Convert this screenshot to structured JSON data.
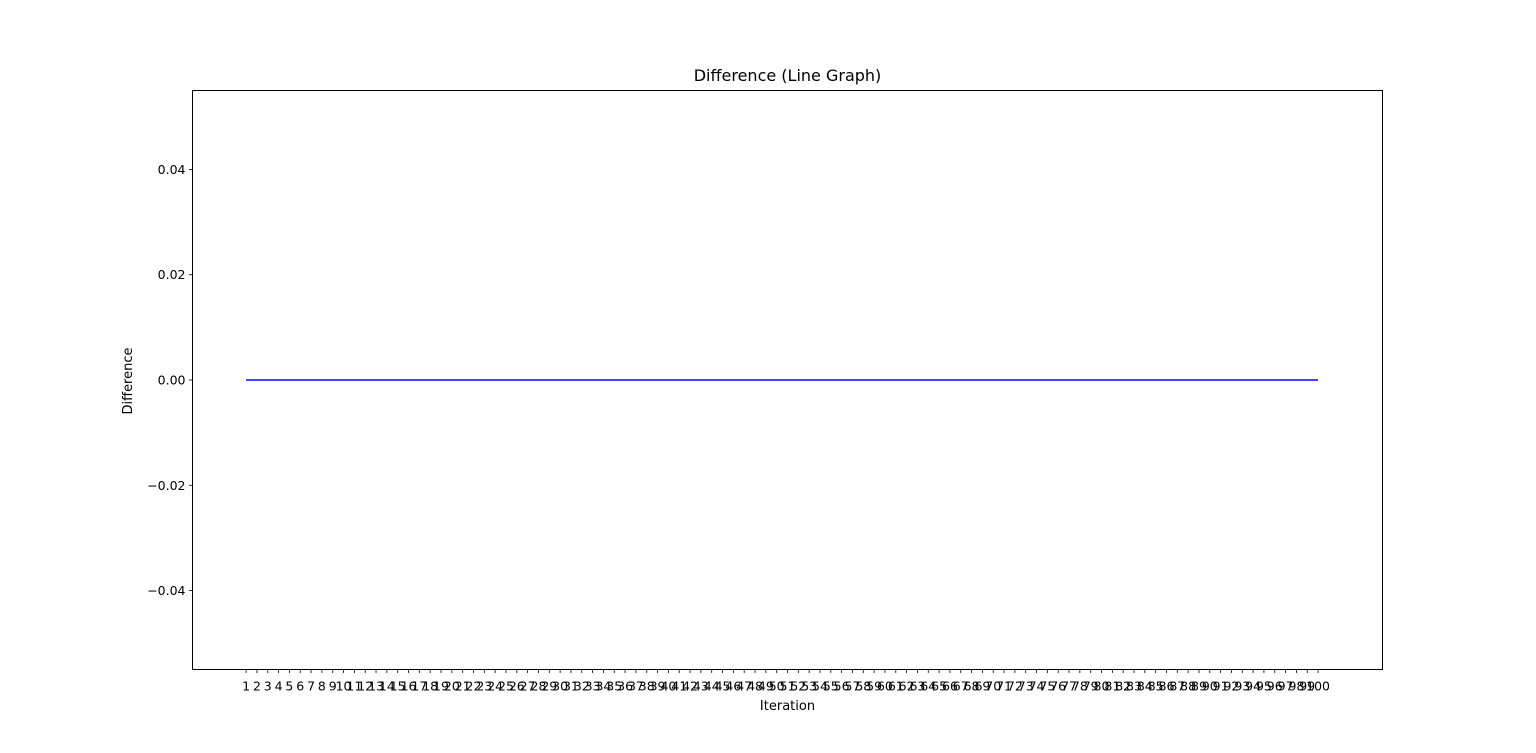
{
  "chart_data": {
    "type": "line",
    "title": "Difference (Line Graph)",
    "xlabel": "Iteration",
    "ylabel": "Difference",
    "x": [
      1,
      2,
      3,
      4,
      5,
      6,
      7,
      8,
      9,
      10,
      11,
      12,
      13,
      14,
      15,
      16,
      17,
      18,
      19,
      20,
      21,
      22,
      23,
      24,
      25,
      26,
      27,
      28,
      29,
      30,
      31,
      32,
      33,
      34,
      35,
      36,
      37,
      38,
      39,
      40,
      41,
      42,
      43,
      44,
      45,
      46,
      47,
      48,
      49,
      50,
      51,
      52,
      53,
      54,
      55,
      56,
      57,
      58,
      59,
      60,
      61,
      62,
      63,
      64,
      65,
      66,
      67,
      68,
      69,
      70,
      71,
      72,
      73,
      74,
      75,
      76,
      77,
      78,
      79,
      80,
      81,
      82,
      83,
      84,
      85,
      86,
      87,
      88,
      89,
      90,
      91,
      92,
      93,
      94,
      95,
      96,
      97,
      98,
      99,
      100
    ],
    "x_tick_labels": [
      "1",
      "2",
      "3",
      "4",
      "5",
      "6",
      "7",
      "8",
      "9",
      "10",
      "11",
      "12",
      "13",
      "14",
      "15",
      "16",
      "17",
      "18",
      "19",
      "20",
      "21",
      "22",
      "23",
      "24",
      "25",
      "26",
      "27",
      "28",
      "29",
      "30",
      "31",
      "32",
      "33",
      "34",
      "35",
      "36",
      "37",
      "38",
      "39",
      "40",
      "41",
      "42",
      "43",
      "44",
      "45",
      "46",
      "47",
      "48",
      "49",
      "50",
      "51",
      "52",
      "53",
      "54",
      "55",
      "56",
      "57",
      "58",
      "59",
      "60",
      "61",
      "62",
      "63",
      "64",
      "65",
      "66",
      "67",
      "68",
      "69",
      "70",
      "71",
      "72",
      "73",
      "74",
      "75",
      "76",
      "77",
      "78",
      "79",
      "80",
      "81",
      "82",
      "83",
      "84",
      "85",
      "86",
      "87",
      "88",
      "89",
      "90",
      "91",
      "92",
      "93",
      "94",
      "95",
      "96",
      "97",
      "98",
      "99",
      "100"
    ],
    "series": [
      {
        "values": [
          0,
          0,
          0,
          0,
          0,
          0,
          0,
          0,
          0,
          0,
          0,
          0,
          0,
          0,
          0,
          0,
          0,
          0,
          0,
          0,
          0,
          0,
          0,
          0,
          0,
          0,
          0,
          0,
          0,
          0,
          0,
          0,
          0,
          0,
          0,
          0,
          0,
          0,
          0,
          0,
          0,
          0,
          0,
          0,
          0,
          0,
          0,
          0,
          0,
          0,
          0,
          0,
          0,
          0,
          0,
          0,
          0,
          0,
          0,
          0,
          0,
          0,
          0,
          0,
          0,
          0,
          0,
          0,
          0,
          0,
          0,
          0,
          0,
          0,
          0,
          0,
          0,
          0,
          0,
          0,
          0,
          0,
          0,
          0,
          0,
          0,
          0,
          0,
          0,
          0,
          0,
          0,
          0,
          0,
          0,
          0,
          0,
          0,
          0,
          0
        ],
        "color": "#0000ff"
      }
    ],
    "yticks": [
      -0.04,
      -0.02,
      0.0,
      0.02,
      0.04
    ],
    "ytick_labels": [
      "−0.04",
      "−0.02",
      "0.00",
      "0.02",
      "0.04"
    ],
    "xlim": [
      -3.95,
      105.95
    ],
    "ylim": [
      -0.055,
      0.055
    ],
    "grid": false,
    "legend": "none"
  }
}
